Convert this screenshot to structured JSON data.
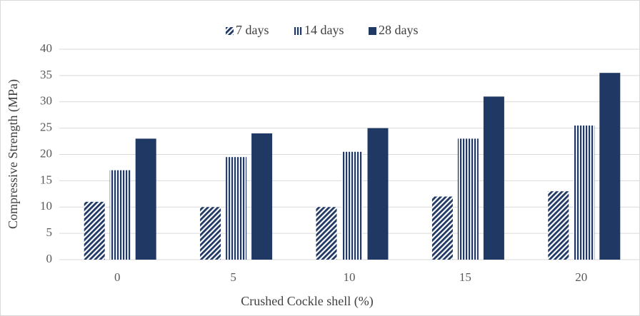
{
  "chart_data": {
    "type": "bar",
    "x_label": "Crushed Cockle shell (%)",
    "y_label": "Compressive Strength (MPa)",
    "categories": [
      "0",
      "5",
      "10",
      "15",
      "20"
    ],
    "series": [
      {
        "name": "7 days",
        "color": "#1f3864",
        "pattern": "diagonal",
        "values": [
          11,
          10,
          10,
          12,
          13
        ]
      },
      {
        "name": "14 days",
        "color": "#1f3864",
        "pattern": "vertical",
        "values": [
          17,
          19.5,
          20.5,
          23,
          25.5
        ]
      },
      {
        "name": "28 days",
        "color": "#1f3864",
        "pattern": "solid",
        "values": [
          23,
          24,
          25,
          31,
          35.5
        ]
      }
    ],
    "ylim": [
      0,
      40
    ],
    "yticks": [
      0,
      5,
      10,
      15,
      20,
      25,
      30,
      35,
      40
    ],
    "grid": true,
    "legend": "top"
  }
}
